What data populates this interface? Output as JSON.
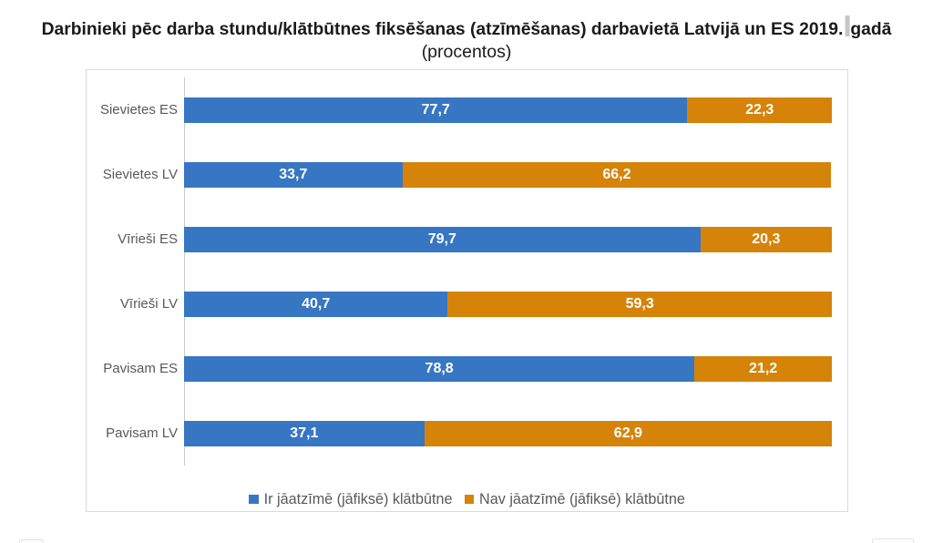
{
  "title": {
    "part1": "Darbinieki pēc darba stundu/klātbūtnes fiksēšanas (atzīmēšanas) darbavietā Latvijā un ES 2019.",
    "selected_space": " ",
    "part2": "gadā",
    "subtitle": "(procentos)"
  },
  "chart_data": {
    "type": "bar",
    "orientation": "horizontal",
    "stacked": true,
    "title": "Darbinieki pēc darba stundu/klātbūtnes fiksēšanas (atzīmēšanas) darbavietā Latvijā un ES 2019. gadā",
    "subtitle": "(procentos)",
    "categories": [
      "Sievietes ES",
      "Sievietes LV",
      "Vīrieši ES",
      "Vīrieši LV",
      "Pavisam ES",
      "Pavisam LV"
    ],
    "series": [
      {
        "name": "Ir jāatzīmē (jāfiksē) klātbūtne",
        "color": "#3776c3",
        "values": [
          77.7,
          33.7,
          79.7,
          40.7,
          78.8,
          37.1
        ],
        "labels": [
          "77,7",
          "33,7",
          "79,7",
          "40,7",
          "78,8",
          "37,1"
        ]
      },
      {
        "name": "Nav jāatzīmē (jāfiksē) klātbūtne",
        "color": "#d6830a",
        "values": [
          22.3,
          66.2,
          20.3,
          59.3,
          21.2,
          62.9
        ],
        "labels": [
          "22,3",
          "66,2",
          "20,3",
          "59,3",
          "21,2",
          "62,9"
        ]
      }
    ],
    "xlim": [
      0,
      100
    ],
    "value_label_color": "#ffffff",
    "category_label_color": "#595959",
    "legend_position": "bottom",
    "grid": false
  }
}
